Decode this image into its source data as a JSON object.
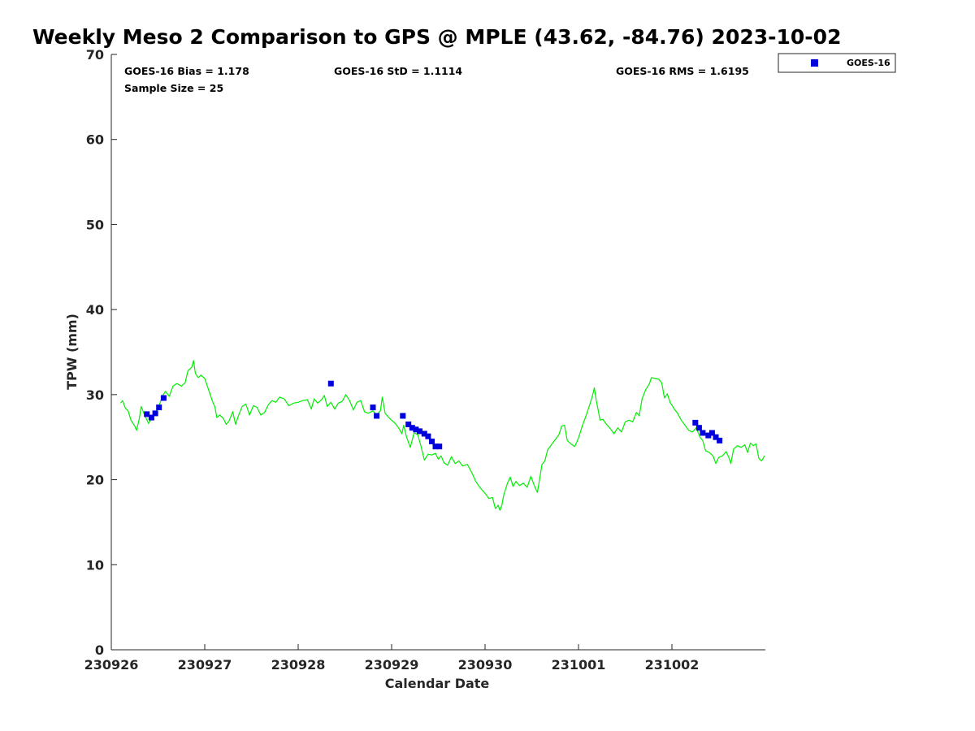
{
  "chart_data": {
    "type": "scatter",
    "title": "Weekly Meso 2 Comparison to GPS @ MPLE (43.62, -84.76) 2023-10-02",
    "xlabel": "Calendar Date",
    "ylabel": "TPW (mm)",
    "xlim": [
      0,
      7
    ],
    "ylim": [
      0,
      70
    ],
    "xticks": [
      {
        "value": 0,
        "label": "230926"
      },
      {
        "value": 1,
        "label": "230927"
      },
      {
        "value": 2,
        "label": "230928"
      },
      {
        "value": 3,
        "label": "230929"
      },
      {
        "value": 4,
        "label": "230930"
      },
      {
        "value": 5,
        "label": "231001"
      },
      {
        "value": 6,
        "label": "231002"
      }
    ],
    "yticks": [
      0,
      10,
      20,
      30,
      40,
      50,
      60,
      70
    ],
    "stats": {
      "bias": "GOES-16 Bias = 1.178",
      "std": "GOES-16 StD = 1.1114",
      "rms": "GOES-16 RMS = 1.6195",
      "sample": "Sample Size = 25"
    },
    "legend": {
      "label": "GOES-16",
      "location": "top-right outside"
    },
    "series": [
      {
        "name": "GPS",
        "kind": "line",
        "color": "#00ee00",
        "points": [
          [
            0.1,
            29.0
          ],
          [
            0.12,
            29.3
          ],
          [
            0.15,
            28.4
          ],
          [
            0.18,
            28.1
          ],
          [
            0.21,
            27.0
          ],
          [
            0.25,
            26.3
          ],
          [
            0.27,
            25.8
          ],
          [
            0.3,
            27.2
          ],
          [
            0.32,
            28.6
          ],
          [
            0.36,
            27.5
          ],
          [
            0.4,
            26.6
          ],
          [
            0.43,
            27.3
          ],
          [
            0.47,
            27.9
          ],
          [
            0.5,
            28.4
          ],
          [
            0.55,
            29.9
          ],
          [
            0.58,
            30.4
          ],
          [
            0.62,
            29.8
          ],
          [
            0.66,
            31.0
          ],
          [
            0.7,
            31.3
          ],
          [
            0.75,
            31.0
          ],
          [
            0.79,
            31.4
          ],
          [
            0.82,
            32.8
          ],
          [
            0.86,
            33.2
          ],
          [
            0.88,
            34.0
          ],
          [
            0.9,
            32.5
          ],
          [
            0.93,
            32.0
          ],
          [
            0.96,
            32.3
          ],
          [
            1.0,
            31.9
          ],
          [
            1.04,
            30.6
          ],
          [
            1.08,
            29.3
          ],
          [
            1.11,
            28.5
          ],
          [
            1.13,
            27.3
          ],
          [
            1.16,
            27.6
          ],
          [
            1.2,
            27.2
          ],
          [
            1.23,
            26.5
          ],
          [
            1.26,
            26.9
          ],
          [
            1.3,
            28.0
          ],
          [
            1.33,
            26.5
          ],
          [
            1.36,
            27.5
          ],
          [
            1.4,
            28.6
          ],
          [
            1.44,
            28.9
          ],
          [
            1.48,
            27.6
          ],
          [
            1.52,
            28.7
          ],
          [
            1.56,
            28.5
          ],
          [
            1.6,
            27.6
          ],
          [
            1.64,
            27.9
          ],
          [
            1.68,
            28.8
          ],
          [
            1.72,
            29.3
          ],
          [
            1.76,
            29.1
          ],
          [
            1.8,
            29.7
          ],
          [
            1.85,
            29.5
          ],
          [
            1.9,
            28.7
          ],
          [
            1.95,
            29.0
          ],
          [
            2.0,
            29.1
          ],
          [
            2.05,
            29.3
          ],
          [
            2.1,
            29.4
          ],
          [
            2.14,
            28.3
          ],
          [
            2.17,
            29.5
          ],
          [
            2.21,
            29.0
          ],
          [
            2.25,
            29.4
          ],
          [
            2.28,
            29.9
          ],
          [
            2.31,
            28.6
          ],
          [
            2.35,
            29.1
          ],
          [
            2.39,
            28.3
          ],
          [
            2.43,
            29.0
          ],
          [
            2.47,
            29.2
          ],
          [
            2.51,
            30.0
          ],
          [
            2.55,
            29.3
          ],
          [
            2.59,
            28.2
          ],
          [
            2.63,
            29.1
          ],
          [
            2.67,
            29.3
          ],
          [
            2.71,
            28.0
          ],
          [
            2.75,
            27.8
          ],
          [
            2.8,
            28.1
          ],
          [
            2.84,
            27.6
          ],
          [
            2.88,
            28.1
          ],
          [
            2.9,
            29.7
          ],
          [
            2.93,
            27.8
          ],
          [
            2.97,
            27.3
          ],
          [
            3.0,
            27.0
          ],
          [
            3.04,
            26.6
          ],
          [
            3.08,
            26.0
          ],
          [
            3.11,
            25.4
          ],
          [
            3.13,
            26.4
          ],
          [
            3.16,
            25.0
          ],
          [
            3.2,
            23.8
          ],
          [
            3.24,
            25.5
          ],
          [
            3.28,
            25.3
          ],
          [
            3.31,
            24.1
          ],
          [
            3.35,
            22.3
          ],
          [
            3.39,
            23.0
          ],
          [
            3.43,
            22.9
          ],
          [
            3.47,
            23.1
          ],
          [
            3.5,
            22.4
          ],
          [
            3.53,
            22.8
          ],
          [
            3.56,
            22.0
          ],
          [
            3.6,
            21.7
          ],
          [
            3.64,
            22.7
          ],
          [
            3.68,
            21.9
          ],
          [
            3.72,
            22.2
          ],
          [
            3.76,
            21.6
          ],
          [
            3.81,
            21.8
          ],
          [
            3.86,
            20.8
          ],
          [
            3.9,
            19.8
          ],
          [
            3.95,
            19.0
          ],
          [
            4.0,
            18.4
          ],
          [
            4.04,
            17.8
          ],
          [
            4.08,
            17.9
          ],
          [
            4.11,
            16.6
          ],
          [
            4.14,
            17.0
          ],
          [
            4.16,
            16.4
          ],
          [
            4.18,
            17.0
          ],
          [
            4.2,
            18.2
          ],
          [
            4.24,
            19.6
          ],
          [
            4.27,
            20.3
          ],
          [
            4.3,
            19.2
          ],
          [
            4.33,
            19.8
          ],
          [
            4.37,
            19.3
          ],
          [
            4.41,
            19.6
          ],
          [
            4.45,
            19.1
          ],
          [
            4.49,
            20.4
          ],
          [
            4.53,
            19.2
          ],
          [
            4.56,
            18.5
          ],
          [
            4.59,
            20.5
          ],
          [
            4.61,
            21.8
          ],
          [
            4.64,
            22.2
          ],
          [
            4.67,
            23.5
          ],
          [
            4.71,
            24.1
          ],
          [
            4.75,
            24.7
          ],
          [
            4.79,
            25.3
          ],
          [
            4.82,
            26.3
          ],
          [
            4.85,
            26.4
          ],
          [
            4.88,
            24.6
          ],
          [
            4.92,
            24.2
          ],
          [
            4.96,
            23.9
          ],
          [
            5.0,
            24.9
          ],
          [
            5.04,
            26.3
          ],
          [
            5.08,
            27.5
          ],
          [
            5.12,
            28.8
          ],
          [
            5.15,
            29.9
          ],
          [
            5.17,
            30.8
          ],
          [
            5.19,
            29.3
          ],
          [
            5.21,
            28.2
          ],
          [
            5.23,
            27.0
          ],
          [
            5.26,
            27.1
          ],
          [
            5.3,
            26.5
          ],
          [
            5.34,
            26.0
          ],
          [
            5.38,
            25.4
          ],
          [
            5.42,
            26.1
          ],
          [
            5.46,
            25.6
          ],
          [
            5.5,
            26.8
          ],
          [
            5.54,
            27.0
          ],
          [
            5.58,
            26.8
          ],
          [
            5.62,
            27.9
          ],
          [
            5.65,
            27.5
          ],
          [
            5.68,
            29.5
          ],
          [
            5.72,
            30.6
          ],
          [
            5.76,
            31.3
          ],
          [
            5.78,
            32.0
          ],
          [
            5.82,
            31.9
          ],
          [
            5.86,
            31.8
          ],
          [
            5.89,
            31.4
          ],
          [
            5.92,
            29.6
          ],
          [
            5.95,
            30.1
          ],
          [
            5.98,
            29.1
          ],
          [
            6.02,
            28.4
          ],
          [
            6.06,
            27.8
          ],
          [
            6.1,
            27.0
          ],
          [
            6.14,
            26.4
          ],
          [
            6.18,
            25.8
          ],
          [
            6.22,
            25.6
          ],
          [
            6.26,
            26.1
          ],
          [
            6.3,
            25.0
          ],
          [
            6.33,
            24.6
          ],
          [
            6.36,
            23.4
          ],
          [
            6.4,
            23.2
          ],
          [
            6.44,
            22.8
          ],
          [
            6.47,
            21.9
          ],
          [
            6.5,
            22.6
          ],
          [
            6.54,
            22.8
          ],
          [
            6.58,
            23.3
          ],
          [
            6.61,
            22.6
          ],
          [
            6.63,
            21.9
          ],
          [
            6.66,
            23.6
          ],
          [
            6.7,
            24.0
          ],
          [
            6.74,
            23.8
          ],
          [
            6.78,
            24.1
          ],
          [
            6.81,
            23.2
          ],
          [
            6.84,
            24.3
          ],
          [
            6.87,
            24.0
          ],
          [
            6.9,
            24.2
          ],
          [
            6.93,
            22.5
          ],
          [
            6.96,
            22.2
          ],
          [
            6.99,
            22.8
          ]
        ]
      },
      {
        "name": "GOES-16",
        "kind": "scatter",
        "color": "#0000dd",
        "points": [
          [
            0.38,
            27.7
          ],
          [
            0.43,
            27.3
          ],
          [
            0.47,
            27.8
          ],
          [
            0.51,
            28.5
          ],
          [
            0.56,
            29.6
          ],
          [
            2.35,
            31.3
          ],
          [
            2.8,
            28.5
          ],
          [
            2.84,
            27.5
          ],
          [
            3.12,
            27.5
          ],
          [
            3.18,
            26.5
          ],
          [
            3.22,
            26.1
          ],
          [
            3.26,
            25.9
          ],
          [
            3.3,
            25.7
          ],
          [
            3.35,
            25.4
          ],
          [
            3.39,
            25.1
          ],
          [
            3.43,
            24.5
          ],
          [
            3.47,
            23.9
          ],
          [
            3.51,
            23.9
          ],
          [
            6.25,
            26.7
          ],
          [
            6.29,
            26.1
          ],
          [
            6.33,
            25.5
          ],
          [
            6.39,
            25.2
          ],
          [
            6.43,
            25.5
          ],
          [
            6.47,
            25.0
          ],
          [
            6.51,
            24.6
          ]
        ]
      }
    ]
  }
}
